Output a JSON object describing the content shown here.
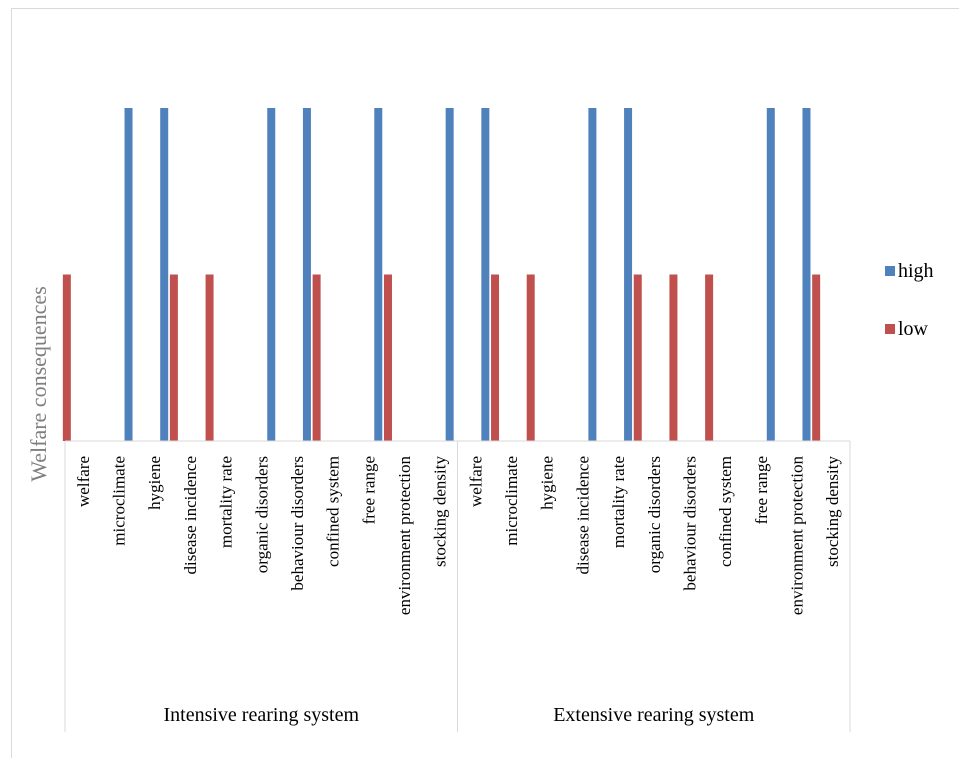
{
  "chart_data": {
    "type": "bar",
    "title": "",
    "ylabel": "Welfare consequences",
    "xlabel": "",
    "ylim": [
      0,
      3
    ],
    "y_axis_visible": false,
    "grid": false,
    "legend_position": "right",
    "groups": [
      {
        "label": "Intensive rearing system",
        "start": 0,
        "count": 11
      },
      {
        "label": "Extensive rearing system",
        "start": 11,
        "count": 11
      }
    ],
    "categories": [
      "welfare",
      "microclimate",
      "hygiene",
      "disease incidence",
      "mortality rate",
      "organic disorders",
      "behaviour disorders",
      "confined system",
      "free range",
      "environment protection",
      "stocking density",
      "welfare",
      "microclimate",
      "hygiene",
      "disease incidence",
      "mortality rate",
      "organic disorders",
      "behaviour disorders",
      "confined system",
      "free range",
      "environment protection",
      "stocking density"
    ],
    "series": [
      {
        "name": "high",
        "color": "#4f81bd",
        "values": [
          0,
          2,
          2,
          0,
          0,
          2,
          2,
          0,
          2,
          0,
          2,
          2,
          0,
          0,
          2,
          2,
          0,
          0,
          0,
          2,
          2,
          0
        ]
      },
      {
        "name": "low",
        "color": "#c0504d",
        "values": [
          1,
          0,
          0,
          1,
          1,
          0,
          0,
          1,
          0,
          1,
          0,
          0,
          1,
          1,
          0,
          0,
          1,
          1,
          1,
          0,
          0,
          1
        ]
      }
    ]
  }
}
